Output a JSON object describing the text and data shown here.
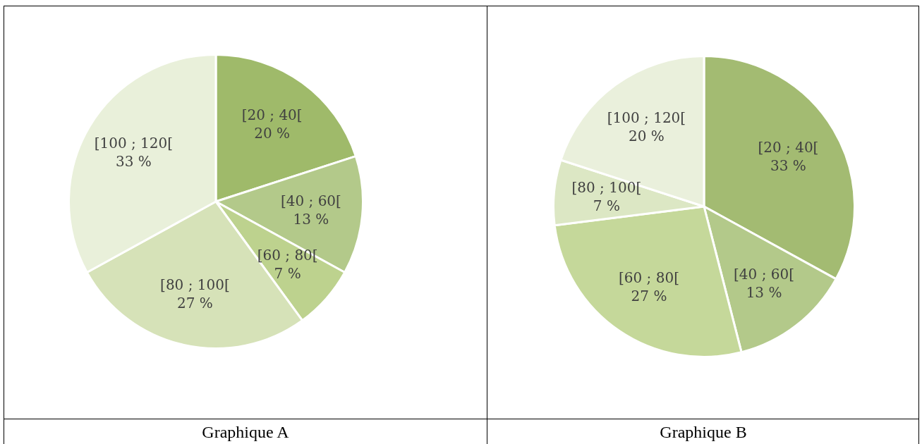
{
  "chart_data": [
    {
      "type": "pie",
      "title": "Graphique A",
      "categories": [
        "[20 ; 40[",
        "[40 ; 60[",
        "[60 ; 80[",
        "[80 ; 100[",
        "[100 ; 120["
      ],
      "values": [
        20,
        13,
        7,
        27,
        33
      ],
      "value_labels": [
        "20 %",
        "13 %",
        "7 %",
        "27 %",
        "33 %"
      ],
      "colors": [
        "#9fba6a",
        "#b3c98a",
        "#bdd28e",
        "#d6e2b8",
        "#e9f0da"
      ],
      "legend": false
    },
    {
      "type": "pie",
      "title": "Graphique B",
      "categories": [
        "[20 ; 40[",
        "[40 ; 60[",
        "[60 ; 80[",
        "[80 ; 100[",
        "[100 ; 120["
      ],
      "values": [
        33,
        13,
        27,
        7,
        20
      ],
      "value_labels": [
        "33 %",
        "13 %",
        "27 %",
        "7 %",
        "20 %"
      ],
      "colors": [
        "#a3bb72",
        "#b3c98a",
        "#c5d89a",
        "#dce7c4",
        "#eaf0dc"
      ],
      "legend": false
    }
  ]
}
